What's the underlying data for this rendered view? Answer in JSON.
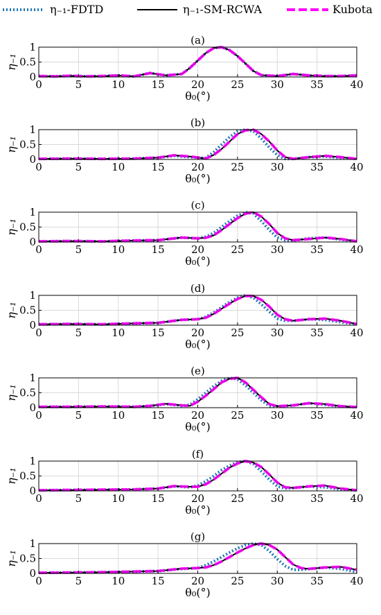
{
  "legend": {
    "items": [
      {
        "label": "η₋₁-FDTD",
        "color": "#1f77b4",
        "style": "dotted"
      },
      {
        "label": "η₋₁-SM-RCWA",
        "color": "#000000",
        "style": "solid"
      },
      {
        "label": "Kubota",
        "color": "#ff00ff",
        "style": "dashed"
      }
    ]
  },
  "colors": {
    "fdtd": "#1f77b4",
    "rcwa": "#000000",
    "kubota": "#ff00ff",
    "grid": "#d9d9d9"
  },
  "chart_data": [
    {
      "type": "line",
      "title": "(a)",
      "xlabel": "θ₀(°)",
      "ylabel": "η₋₁",
      "xlim": [
        0,
        40
      ],
      "ylim": [
        0,
        1
      ],
      "xticks": [
        "0",
        "5",
        "10",
        "15",
        "20",
        "25",
        "30",
        "35",
        "40"
      ],
      "yticks": [
        "0",
        "0.5",
        "1"
      ],
      "grid": true,
      "x": [
        0,
        2,
        4,
        6,
        8,
        10,
        12,
        14,
        16,
        18,
        19,
        20,
        21,
        22,
        23,
        24,
        25,
        26,
        27,
        28,
        30,
        32,
        34,
        36,
        38,
        40
      ],
      "series": [
        {
          "name": "η₋₁-FDTD",
          "values": [
            0.03,
            0.02,
            0.04,
            0.02,
            0.03,
            0.05,
            0.02,
            0.13,
            0.05,
            0.1,
            0.3,
            0.55,
            0.8,
            0.97,
            1.0,
            0.9,
            0.7,
            0.45,
            0.2,
            0.06,
            0.03,
            0.1,
            0.05,
            0.03,
            0.03,
            0.05
          ]
        },
        {
          "name": "η₋₁-SM-RCWA",
          "values": [
            0.03,
            0.02,
            0.04,
            0.02,
            0.03,
            0.05,
            0.02,
            0.13,
            0.05,
            0.1,
            0.3,
            0.55,
            0.8,
            0.97,
            1.0,
            0.9,
            0.7,
            0.45,
            0.2,
            0.06,
            0.03,
            0.1,
            0.05,
            0.03,
            0.03,
            0.05
          ]
        },
        {
          "name": "Kubota",
          "values": [
            0.03,
            0.02,
            0.04,
            0.02,
            0.03,
            0.05,
            0.02,
            0.13,
            0.05,
            0.1,
            0.3,
            0.55,
            0.8,
            0.97,
            1.0,
            0.9,
            0.7,
            0.45,
            0.2,
            0.06,
            0.03,
            0.1,
            0.05,
            0.03,
            0.03,
            0.05
          ]
        }
      ]
    },
    {
      "type": "line",
      "title": "(b)",
      "xlabel": "θ₀(°)",
      "ylabel": "η₋₁",
      "xlim": [
        0,
        40
      ],
      "ylim": [
        0,
        1
      ],
      "xticks": [
        "0",
        "5",
        "10",
        "15",
        "20",
        "25",
        "30",
        "35",
        "40"
      ],
      "yticks": [
        "0",
        "0.5",
        "1"
      ],
      "grid": true,
      "x": [
        0,
        4,
        8,
        12,
        15,
        17,
        19,
        21,
        22,
        23,
        24,
        25,
        26,
        27,
        28,
        29,
        30,
        31,
        32,
        34,
        36,
        38,
        40
      ],
      "series": [
        {
          "name": "η₋₁-FDTD",
          "values": [
            0.02,
            0.03,
            0.02,
            0.03,
            0.06,
            0.12,
            0.08,
            0.05,
            0.25,
            0.5,
            0.75,
            0.95,
            1.0,
            0.95,
            0.7,
            0.4,
            0.15,
            0.02,
            0.02,
            0.08,
            0.1,
            0.05,
            0.02
          ]
        },
        {
          "name": "η₋₁-SM-RCWA",
          "values": [
            0.02,
            0.03,
            0.02,
            0.03,
            0.06,
            0.14,
            0.1,
            0.03,
            0.15,
            0.35,
            0.6,
            0.85,
            0.98,
            1.0,
            0.85,
            0.6,
            0.3,
            0.08,
            0.02,
            0.08,
            0.12,
            0.08,
            0.02
          ]
        },
        {
          "name": "Kubota",
          "values": [
            0.02,
            0.03,
            0.02,
            0.03,
            0.06,
            0.14,
            0.1,
            0.03,
            0.15,
            0.35,
            0.6,
            0.85,
            0.98,
            1.0,
            0.85,
            0.6,
            0.3,
            0.08,
            0.02,
            0.08,
            0.12,
            0.08,
            0.02
          ]
        }
      ]
    },
    {
      "type": "line",
      "title": "(c)",
      "xlabel": "θ₀(°)",
      "ylabel": "η₋₁",
      "xlim": [
        0,
        40
      ],
      "ylim": [
        0,
        1
      ],
      "xticks": [
        "0",
        "5",
        "10",
        "15",
        "20",
        "25",
        "30",
        "35",
        "40"
      ],
      "yticks": [
        "0",
        "0.5",
        "1"
      ],
      "grid": true,
      "x": [
        0,
        4,
        8,
        12,
        15,
        18,
        20,
        21,
        22,
        23,
        24,
        25,
        26,
        27,
        28,
        29,
        30,
        31,
        32,
        34,
        36,
        38,
        40
      ],
      "series": [
        {
          "name": "η₋₁-FDTD",
          "values": [
            0.02,
            0.03,
            0.02,
            0.05,
            0.06,
            0.15,
            0.12,
            0.18,
            0.3,
            0.5,
            0.7,
            0.88,
            1.0,
            0.95,
            0.7,
            0.4,
            0.15,
            0.06,
            0.05,
            0.12,
            0.15,
            0.08,
            0.02
          ]
        },
        {
          "name": "η₋₁-SM-RCWA",
          "values": [
            0.02,
            0.03,
            0.02,
            0.05,
            0.06,
            0.15,
            0.12,
            0.14,
            0.22,
            0.4,
            0.6,
            0.8,
            0.95,
            1.0,
            0.85,
            0.6,
            0.3,
            0.12,
            0.06,
            0.1,
            0.15,
            0.1,
            0.02
          ]
        },
        {
          "name": "Kubota",
          "values": [
            0.02,
            0.03,
            0.02,
            0.05,
            0.06,
            0.15,
            0.12,
            0.14,
            0.22,
            0.4,
            0.6,
            0.8,
            0.95,
            1.0,
            0.85,
            0.6,
            0.3,
            0.12,
            0.06,
            0.1,
            0.15,
            0.1,
            0.02
          ]
        }
      ]
    },
    {
      "type": "line",
      "title": "(d)",
      "xlabel": "θ₀(°)",
      "ylabel": "η₋₁",
      "xlim": [
        0,
        40
      ],
      "ylim": [
        0,
        1
      ],
      "xticks": [
        "0",
        "5",
        "10",
        "15",
        "20",
        "25",
        "30",
        "35",
        "40"
      ],
      "yticks": [
        "0",
        "0.5",
        "1"
      ],
      "grid": true,
      "x": [
        0,
        4,
        8,
        12,
        15,
        18,
        20,
        21,
        22,
        23,
        24,
        25,
        26,
        27,
        28,
        29,
        30,
        31,
        32,
        34,
        36,
        38,
        40
      ],
      "series": [
        {
          "name": "η₋₁-FDTD",
          "values": [
            0.03,
            0.04,
            0.03,
            0.06,
            0.08,
            0.18,
            0.2,
            0.28,
            0.42,
            0.6,
            0.78,
            0.92,
            1.0,
            0.92,
            0.7,
            0.45,
            0.22,
            0.15,
            0.15,
            0.2,
            0.18,
            0.1,
            0.04
          ]
        },
        {
          "name": "η₋₁-SM-RCWA",
          "values": [
            0.03,
            0.04,
            0.03,
            0.06,
            0.08,
            0.18,
            0.2,
            0.25,
            0.38,
            0.55,
            0.72,
            0.88,
            0.98,
            0.98,
            0.85,
            0.62,
            0.35,
            0.2,
            0.15,
            0.2,
            0.22,
            0.15,
            0.04
          ]
        },
        {
          "name": "Kubota",
          "values": [
            0.03,
            0.04,
            0.03,
            0.06,
            0.08,
            0.18,
            0.2,
            0.25,
            0.38,
            0.55,
            0.72,
            0.88,
            0.98,
            0.98,
            0.85,
            0.62,
            0.35,
            0.2,
            0.15,
            0.2,
            0.22,
            0.15,
            0.04
          ]
        }
      ]
    },
    {
      "type": "line",
      "title": "(e)",
      "xlabel": "θ₀(°)",
      "ylabel": "η₋₁",
      "xlim": [
        0,
        40
      ],
      "ylim": [
        0,
        1
      ],
      "xticks": [
        "0",
        "5",
        "10",
        "15",
        "20",
        "25",
        "30",
        "35",
        "40"
      ],
      "yticks": [
        "0",
        "0.5",
        "1"
      ],
      "grid": true,
      "x": [
        0,
        4,
        8,
        12,
        14,
        16,
        18,
        19,
        20,
        21,
        22,
        23,
        24,
        25,
        26,
        27,
        28,
        29,
        30,
        32,
        34,
        36,
        38,
        40
      ],
      "series": [
        {
          "name": "η₋₁-FDTD",
          "values": [
            0.03,
            0.03,
            0.04,
            0.03,
            0.06,
            0.12,
            0.06,
            0.1,
            0.28,
            0.5,
            0.72,
            0.9,
            1.0,
            0.95,
            0.75,
            0.5,
            0.25,
            0.06,
            0.04,
            0.08,
            0.15,
            0.1,
            0.04,
            0.02
          ]
        },
        {
          "name": "η₋₁-SM-RCWA",
          "values": [
            0.03,
            0.03,
            0.04,
            0.03,
            0.06,
            0.13,
            0.08,
            0.06,
            0.2,
            0.4,
            0.62,
            0.85,
            0.97,
            1.0,
            0.85,
            0.6,
            0.35,
            0.12,
            0.05,
            0.08,
            0.15,
            0.12,
            0.05,
            0.02
          ]
        },
        {
          "name": "Kubota",
          "values": [
            0.03,
            0.03,
            0.04,
            0.03,
            0.06,
            0.13,
            0.08,
            0.06,
            0.2,
            0.4,
            0.62,
            0.85,
            0.97,
            1.0,
            0.85,
            0.6,
            0.35,
            0.12,
            0.05,
            0.08,
            0.15,
            0.12,
            0.05,
            0.02
          ]
        }
      ]
    },
    {
      "type": "line",
      "title": "(f)",
      "xlabel": "θ₀(°)",
      "ylabel": "η₋₁",
      "xlim": [
        0,
        40
      ],
      "ylim": [
        0,
        1
      ],
      "xticks": [
        "0",
        "5",
        "10",
        "15",
        "20",
        "25",
        "30",
        "35",
        "40"
      ],
      "yticks": [
        "0",
        "0.5",
        "1"
      ],
      "grid": true,
      "x": [
        0,
        4,
        8,
        12,
        15,
        17,
        19,
        20,
        21,
        22,
        23,
        24,
        25,
        26,
        27,
        28,
        29,
        30,
        31,
        32,
        34,
        36,
        38,
        40
      ],
      "series": [
        {
          "name": "η₋₁-FDTD",
          "values": [
            0.02,
            0.03,
            0.04,
            0.05,
            0.08,
            0.15,
            0.12,
            0.18,
            0.32,
            0.5,
            0.7,
            0.85,
            0.97,
            1.0,
            0.9,
            0.65,
            0.38,
            0.15,
            0.08,
            0.1,
            0.15,
            0.12,
            0.05,
            0.02
          ]
        },
        {
          "name": "η₋₁-SM-RCWA",
          "values": [
            0.02,
            0.03,
            0.04,
            0.05,
            0.08,
            0.16,
            0.14,
            0.14,
            0.22,
            0.38,
            0.58,
            0.78,
            0.92,
            1.0,
            0.95,
            0.8,
            0.55,
            0.28,
            0.12,
            0.1,
            0.15,
            0.18,
            0.08,
            0.02
          ]
        },
        {
          "name": "Kubota",
          "values": [
            0.02,
            0.03,
            0.04,
            0.05,
            0.08,
            0.16,
            0.14,
            0.14,
            0.22,
            0.38,
            0.58,
            0.78,
            0.92,
            1.0,
            0.95,
            0.8,
            0.55,
            0.28,
            0.12,
            0.1,
            0.15,
            0.18,
            0.08,
            0.02
          ]
        }
      ]
    },
    {
      "type": "line",
      "title": "(g)",
      "xlabel": "θ₀(°)",
      "ylabel": "η₋₁",
      "xlim": [
        0,
        40
      ],
      "ylim": [
        0,
        1
      ],
      "xticks": [
        "0",
        "5",
        "10",
        "15",
        "20",
        "25",
        "30",
        "35",
        "40"
      ],
      "yticks": [
        "0",
        "0.5",
        "1"
      ],
      "grid": true,
      "x": [
        0,
        4,
        8,
        12,
        15,
        18,
        20,
        21,
        22,
        23,
        24,
        25,
        26,
        27,
        28,
        29,
        30,
        31,
        32,
        33,
        34,
        36,
        38,
        40
      ],
      "series": [
        {
          "name": "η₋₁-FDTD",
          "values": [
            0.02,
            0.03,
            0.04,
            0.06,
            0.08,
            0.15,
            0.18,
            0.28,
            0.4,
            0.55,
            0.7,
            0.84,
            0.95,
            1.0,
            0.95,
            0.75,
            0.48,
            0.25,
            0.12,
            0.12,
            0.15,
            0.2,
            0.15,
            0.05
          ]
        },
        {
          "name": "η₋₁-SM-RCWA",
          "values": [
            0.02,
            0.03,
            0.04,
            0.06,
            0.08,
            0.16,
            0.18,
            0.2,
            0.28,
            0.4,
            0.55,
            0.7,
            0.84,
            0.95,
            1.0,
            0.95,
            0.8,
            0.55,
            0.3,
            0.18,
            0.15,
            0.2,
            0.22,
            0.12
          ]
        },
        {
          "name": "Kubota",
          "values": [
            0.02,
            0.03,
            0.04,
            0.06,
            0.08,
            0.16,
            0.18,
            0.2,
            0.28,
            0.4,
            0.55,
            0.7,
            0.84,
            0.95,
            1.0,
            0.95,
            0.8,
            0.55,
            0.3,
            0.18,
            0.15,
            0.2,
            0.22,
            0.12
          ]
        }
      ]
    }
  ]
}
